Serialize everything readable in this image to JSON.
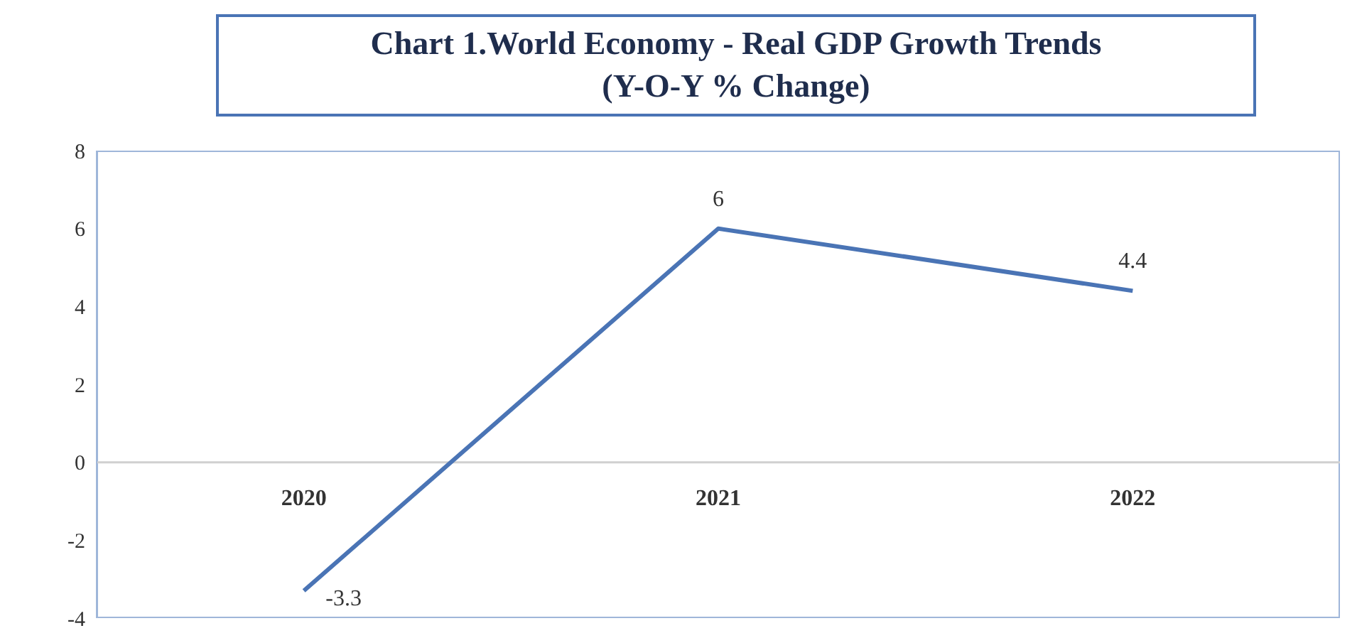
{
  "chart_data": {
    "type": "line",
    "title": "Chart 1.World Economy - Real GDP Growth Trends",
    "subtitle": "(Y-O-Y % Change)",
    "categories": [
      "2020",
      "2021",
      "2022"
    ],
    "series": [
      {
        "color": "#4a74b5",
        "values": [
          -3.3,
          6,
          4.4
        ]
      }
    ],
    "ylim": [
      -4,
      8
    ],
    "yticks": [
      -4,
      -2,
      0,
      2,
      4,
      6,
      8
    ],
    "grid": false,
    "marker": "none",
    "line_style": "solid",
    "data_labels": true
  }
}
